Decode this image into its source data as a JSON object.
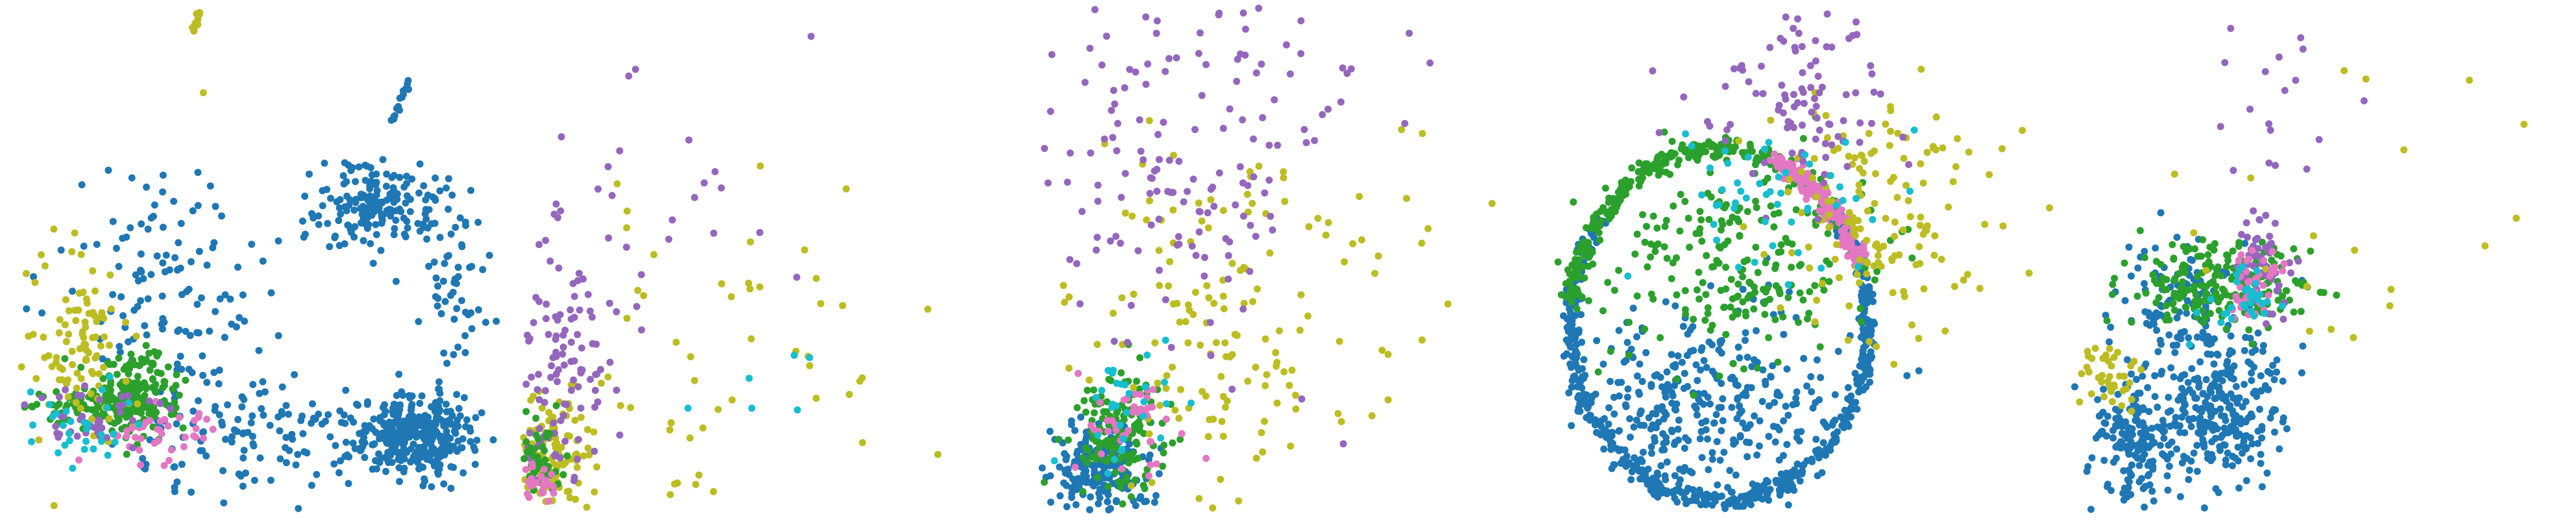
{
  "figure": {
    "panel_count": 5,
    "background": "#ffffff",
    "axes_visible": false
  },
  "colors": {
    "blue": "#1f77b4",
    "green": "#2ca02c",
    "purple": "#9467bd",
    "olive": "#bcbd22",
    "cyan": "#17becf",
    "pink": "#e377c2"
  },
  "chart_data": [
    {
      "type": "scatter",
      "panel": 1,
      "xlim": [
        0,
        100
      ],
      "ylim": [
        0,
        100
      ],
      "grid": false,
      "legend": "none",
      "clusters": [
        {
          "color": "blue",
          "count": 340,
          "shape": "gauss",
          "cx": 82,
          "cy": 15,
          "sx": 6,
          "sy": 4
        },
        {
          "color": "blue",
          "count": 180,
          "shape": "gauss",
          "cx": 74,
          "cy": 61,
          "sx": 6,
          "sy": 4
        },
        {
          "color": "blue",
          "count": 140,
          "shape": "gauss",
          "cx": 50,
          "cy": 15,
          "sx": 15,
          "sy": 6
        },
        {
          "color": "blue",
          "count": 120,
          "shape": "gauss",
          "cx": 30,
          "cy": 45,
          "sx": 10,
          "sy": 10
        },
        {
          "color": "blue",
          "count": 60,
          "shape": "gauss",
          "cx": 90,
          "cy": 45,
          "sx": 4,
          "sy": 10
        },
        {
          "color": "blue",
          "count": 15,
          "shape": "line",
          "x1": 77,
          "y1": 77,
          "x2": 81,
          "y2": 86
        },
        {
          "color": "green",
          "count": 200,
          "shape": "gauss",
          "cx": 25,
          "cy": 23,
          "sx": 4,
          "sy": 4
        },
        {
          "color": "green",
          "count": 60,
          "shape": "gauss",
          "cx": 15,
          "cy": 20,
          "sx": 7,
          "sy": 2
        },
        {
          "color": "olive",
          "count": 100,
          "shape": "gauss",
          "cx": 15,
          "cy": 33,
          "sx": 5,
          "sy": 9
        },
        {
          "color": "olive",
          "count": 14,
          "shape": "line",
          "x1": 37,
          "y1": 95,
          "x2": 39,
          "y2": 100
        },
        {
          "color": "olive",
          "count": 1,
          "shape": "gauss",
          "cx": 40,
          "cy": 83,
          "sx": 0.5,
          "sy": 0.5
        },
        {
          "color": "pink",
          "count": 40,
          "shape": "gauss",
          "cx": 30,
          "cy": 15,
          "sx": 6,
          "sy": 3
        },
        {
          "color": "purple",
          "count": 40,
          "shape": "gauss",
          "cx": 20,
          "cy": 18,
          "sx": 8,
          "sy": 3
        },
        {
          "color": "cyan",
          "count": 30,
          "shape": "gauss",
          "cx": 15,
          "cy": 17,
          "sx": 5,
          "sy": 3
        }
      ]
    },
    {
      "type": "scatter",
      "panel": 2,
      "xlim": [
        0,
        100
      ],
      "ylim": [
        0,
        100
      ],
      "grid": false,
      "legend": "none",
      "clusters": [
        {
          "color": "olive",
          "count": 120,
          "shape": "gauss",
          "cx": 5,
          "cy": 10,
          "sx": 4,
          "sy": 6
        },
        {
          "color": "olive",
          "count": 60,
          "shape": "gauss",
          "cx": 30,
          "cy": 25,
          "sx": 20,
          "sy": 20
        },
        {
          "color": "purple",
          "count": 120,
          "shape": "gauss",
          "cx": 8,
          "cy": 30,
          "sx": 6,
          "sy": 15
        },
        {
          "color": "purple",
          "count": 25,
          "shape": "gauss",
          "cx": 25,
          "cy": 65,
          "sx": 14,
          "sy": 14
        },
        {
          "color": "green",
          "count": 60,
          "shape": "gauss",
          "cx": 3,
          "cy": 8,
          "sx": 2,
          "sy": 5
        },
        {
          "color": "pink",
          "count": 25,
          "shape": "gauss",
          "cx": 3,
          "cy": 5,
          "sx": 2,
          "sy": 3
        },
        {
          "color": "cyan",
          "count": 6,
          "shape": "gauss",
          "cx": 40,
          "cy": 20,
          "sx": 15,
          "sy": 10
        }
      ]
    },
    {
      "type": "scatter",
      "panel": 3,
      "xlim": [
        0,
        100
      ],
      "ylim": [
        0,
        100
      ],
      "grid": false,
      "legend": "none",
      "clusters": [
        {
          "color": "blue",
          "count": 220,
          "shape": "gauss",
          "cx": 12,
          "cy": 8,
          "sx": 5,
          "sy": 5
        },
        {
          "color": "green",
          "count": 150,
          "shape": "gauss",
          "cx": 16,
          "cy": 15,
          "sx": 5,
          "sy": 6
        },
        {
          "color": "olive",
          "count": 120,
          "shape": "gauss",
          "cx": 35,
          "cy": 32,
          "sx": 15,
          "sy": 18
        },
        {
          "color": "olive",
          "count": 40,
          "shape": "gauss",
          "cx": 55,
          "cy": 45,
          "sx": 25,
          "sy": 25
        },
        {
          "color": "purple",
          "count": 120,
          "shape": "gauss",
          "cx": 30,
          "cy": 62,
          "sx": 14,
          "sy": 20
        },
        {
          "color": "purple",
          "count": 40,
          "shape": "gauss",
          "cx": 45,
          "cy": 85,
          "sx": 18,
          "sy": 10
        },
        {
          "color": "pink",
          "count": 40,
          "shape": "gauss",
          "cx": 18,
          "cy": 18,
          "sx": 5,
          "sy": 6
        },
        {
          "color": "cyan",
          "count": 30,
          "shape": "gauss",
          "cx": 18,
          "cy": 20,
          "sx": 5,
          "sy": 6
        }
      ]
    },
    {
      "type": "scatter",
      "panel": 4,
      "xlim": [
        0,
        100
      ],
      "ylim": [
        0,
        100
      ],
      "grid": false,
      "legend": "none",
      "clusters": [
        {
          "color": "blue",
          "count": 520,
          "shape": "ring",
          "cx": 33,
          "cy": 37,
          "rx": 30,
          "ry": 35,
          "a0": 140,
          "a1": 400
        },
        {
          "color": "blue",
          "count": 330,
          "shape": "gauss",
          "cx": 30,
          "cy": 22,
          "sx": 13,
          "sy": 10
        },
        {
          "color": "green",
          "count": 220,
          "shape": "gauss",
          "cx": 35,
          "cy": 48,
          "sx": 14,
          "sy": 10
        },
        {
          "color": "green",
          "count": 280,
          "shape": "ring",
          "cx": 33,
          "cy": 37,
          "rx": 30,
          "ry": 35,
          "a0": 40,
          "a1": 175
        },
        {
          "color": "pink",
          "count": 150,
          "shape": "ring",
          "cx": 33,
          "cy": 37,
          "rx": 30,
          "ry": 35,
          "a0": 20,
          "a1": 70
        },
        {
          "color": "olive",
          "count": 150,
          "shape": "gauss",
          "cx": 65,
          "cy": 60,
          "sx": 12,
          "sy": 12
        },
        {
          "color": "purple",
          "count": 100,
          "shape": "gauss",
          "cx": 48,
          "cy": 82,
          "sx": 10,
          "sy": 10
        },
        {
          "color": "cyan",
          "count": 50,
          "shape": "gauss",
          "cx": 45,
          "cy": 65,
          "sx": 12,
          "sy": 8
        }
      ]
    },
    {
      "type": "scatter",
      "panel": 5,
      "xlim": [
        0,
        100
      ],
      "ylim": [
        0,
        100
      ],
      "grid": false,
      "legend": "none",
      "clusters": [
        {
          "color": "blue",
          "count": 300,
          "shape": "gauss",
          "cx": 30,
          "cy": 20,
          "sx": 7,
          "sy": 8
        },
        {
          "color": "blue",
          "count": 160,
          "shape": "gauss",
          "cx": 12,
          "cy": 14,
          "sx": 4,
          "sy": 6
        },
        {
          "color": "blue",
          "count": 100,
          "shape": "gauss",
          "cx": 22,
          "cy": 42,
          "sx": 6,
          "sy": 6
        },
        {
          "color": "green",
          "count": 220,
          "shape": "gauss",
          "cx": 30,
          "cy": 45,
          "sx": 9,
          "sy": 4
        },
        {
          "color": "purple",
          "count": 60,
          "shape": "gauss",
          "cx": 38,
          "cy": 48,
          "sx": 3,
          "sy": 5
        },
        {
          "color": "purple",
          "count": 20,
          "shape": "gauss",
          "cx": 40,
          "cy": 80,
          "sx": 10,
          "sy": 12
        },
        {
          "color": "olive",
          "count": 40,
          "shape": "gauss",
          "cx": 8,
          "cy": 26,
          "sx": 5,
          "sy": 3
        },
        {
          "color": "olive",
          "count": 20,
          "shape": "gauss",
          "cx": 60,
          "cy": 60,
          "sx": 20,
          "sy": 15
        },
        {
          "color": "pink",
          "count": 40,
          "shape": "gauss",
          "cx": 36,
          "cy": 45,
          "sx": 3,
          "sy": 4
        },
        {
          "color": "cyan",
          "count": 30,
          "shape": "gauss",
          "cx": 34,
          "cy": 42,
          "sx": 4,
          "sy": 4
        }
      ]
    }
  ]
}
